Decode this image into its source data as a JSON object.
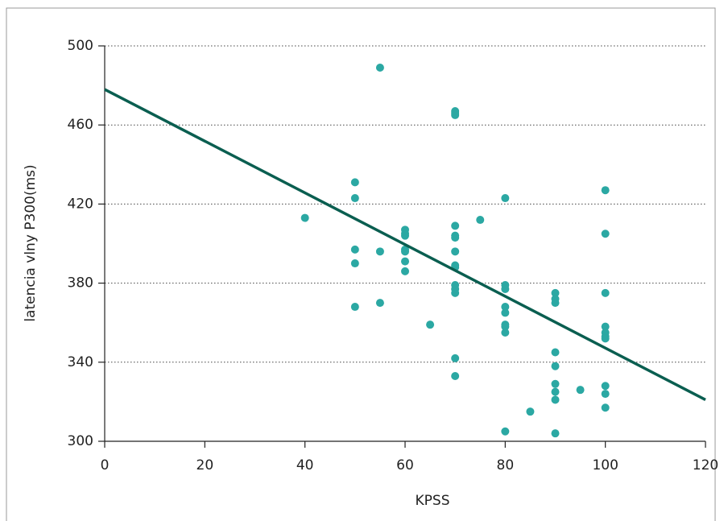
{
  "chart_data": {
    "type": "scatter",
    "x_label": "KPSS",
    "y_label": "latencia vlny P300(ms)",
    "x": [
      40,
      50,
      50,
      50,
      50,
      50,
      55,
      55,
      55,
      60,
      60,
      60,
      60,
      60,
      60,
      60,
      65,
      70,
      70,
      70,
      70,
      70,
      70,
      70,
      70,
      70,
      70,
      70,
      70,
      70,
      70,
      75,
      80,
      80,
      80,
      80,
      80,
      80,
      80,
      80,
      80,
      85,
      90,
      90,
      90,
      90,
      90,
      90,
      90,
      90,
      90,
      95,
      100,
      100,
      100,
      100,
      100,
      100,
      100,
      100,
      100,
      100
    ],
    "y": [
      413,
      431,
      423,
      397,
      390,
      368,
      489,
      396,
      370,
      407,
      405,
      404,
      397,
      396,
      391,
      386,
      359,
      467,
      466,
      465,
      409,
      404,
      403,
      396,
      389,
      388,
      379,
      377,
      375,
      342,
      333,
      412,
      423,
      379,
      377,
      368,
      365,
      359,
      358,
      355,
      305,
      315,
      375,
      372,
      370,
      345,
      338,
      329,
      325,
      321,
      304,
      326,
      427,
      405,
      375,
      358,
      355,
      353,
      352,
      328,
      324,
      317
    ],
    "color": "#2ba8a3",
    "trend": {
      "x": [
        0,
        120
      ],
      "values": [
        478,
        321
      ],
      "color": "#0a5e50"
    },
    "xlim": [
      0,
      120
    ],
    "xticks": [
      0,
      20,
      40,
      60,
      80,
      100,
      120
    ],
    "ylim": [
      300,
      500
    ],
    "yticks": [
      300,
      340,
      380,
      420,
      460,
      500
    ],
    "grid": true
  }
}
